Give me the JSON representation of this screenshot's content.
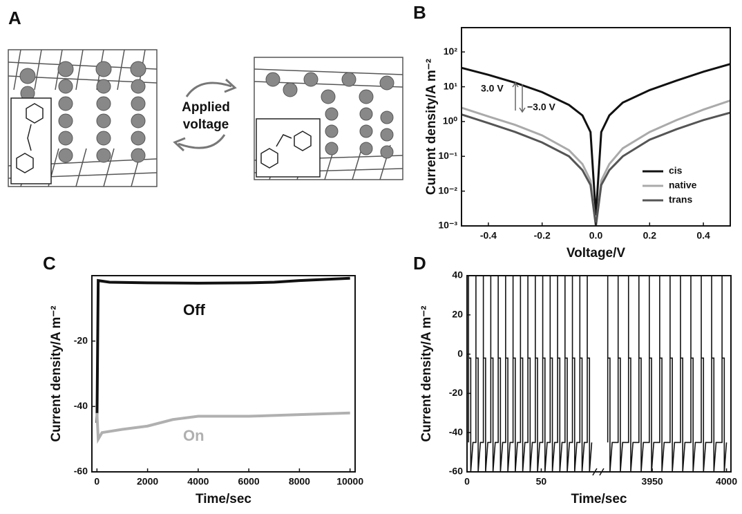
{
  "diagram": {
    "label": "A",
    "lines": [
      "Applied",
      "voltage"
    ]
  },
  "chart_data": [
    {
      "type": "line",
      "label": "B",
      "xlabel": "Voltage/V",
      "ylabel": "Current density/A m⁻²",
      "log_y": true,
      "legend": "lower right",
      "xlim": [
        -0.5,
        0.5
      ],
      "xticks": [
        -0.4,
        -0.2,
        {
          "value": 0,
          "label": "0.0"
        },
        0.2,
        0.4
      ],
      "ylim": [
        0.001,
        500
      ],
      "yticks": [
        {
          "value": 0.001,
          "label": "10⁻³"
        },
        {
          "value": 0.01,
          "label": "10⁻²"
        },
        {
          "value": 0.1,
          "label": "10⁻¹"
        },
        {
          "value": 1,
          "label": "10⁰"
        },
        {
          "value": 10,
          "label": "10¹"
        },
        {
          "value": 100,
          "label": "10²"
        }
      ],
      "annotations": [
        "3.0 V",
        "−3.0 V"
      ],
      "x": [
        -0.5,
        -0.4,
        -0.3,
        -0.2,
        -0.1,
        -0.05,
        -0.02,
        0,
        0.02,
        0.05,
        0.1,
        0.2,
        0.3,
        0.4,
        0.5
      ],
      "series": [
        {
          "name": "cis",
          "color": "#111111",
          "values": [
            35,
            22,
            13,
            7,
            3,
            1.5,
            0.5,
            0.002,
            0.5,
            1.5,
            3.5,
            8,
            15,
            27,
            45
          ]
        },
        {
          "name": "native",
          "color": "#aaaaaa",
          "values": [
            2.5,
            1.4,
            0.8,
            0.4,
            0.15,
            0.06,
            0.02,
            0.001,
            0.02,
            0.06,
            0.17,
            0.5,
            1.1,
            2.2,
            4
          ]
        },
        {
          "name": "trans",
          "color": "#555555",
          "values": [
            1.6,
            0.9,
            0.5,
            0.25,
            0.1,
            0.04,
            0.015,
            0.001,
            0.015,
            0.04,
            0.1,
            0.3,
            0.6,
            1.1,
            1.8
          ]
        }
      ]
    },
    {
      "type": "line",
      "label": "C",
      "xlabel": "Time/sec",
      "ylabel": "Current density/A m⁻²",
      "xlim": [
        -200,
        10200
      ],
      "xticks": [
        0,
        2000,
        4000,
        6000,
        8000,
        10000
      ],
      "ylim": [
        -60,
        0
      ],
      "yticks": [
        -60,
        -40,
        -20
      ],
      "series": [
        {
          "name": "Off",
          "color": "#111111",
          "x": [
            0,
            50,
            500,
            2000,
            4000,
            6000,
            7000,
            8000,
            10000
          ],
          "values": [
            -45,
            -1.5,
            -2,
            -2.2,
            -2.3,
            -2.2,
            -2,
            -1.5,
            -0.8
          ]
        },
        {
          "name": "On",
          "color": "#b0b0b0",
          "x": [
            0,
            50,
            200,
            1000,
            2000,
            3000,
            4000,
            6000,
            8000,
            10000
          ],
          "values": [
            -42,
            -50,
            -48,
            -47,
            -46,
            -44,
            -43,
            -43,
            -42.5,
            -42
          ]
        }
      ]
    },
    {
      "type": "line",
      "label": "D",
      "xlabel": "Time/sec",
      "ylabel": "Current density/A m⁻²",
      "xlim": [
        0,
        4003
      ],
      "axis_break": [
        87,
        3915
      ],
      "xticks": [
        0,
        50,
        3950,
        4000
      ],
      "ylim": [
        -60,
        40
      ],
      "yticks": [
        -60,
        -40,
        -20,
        0,
        20,
        40
      ],
      "series": [
        {
          "color": "#111111",
          "x": [
            1,
            1,
            1,
            2.5,
            2.5,
            4,
            6,
            6,
            6,
            7.5,
            7.5,
            9,
            11,
            11,
            11,
            12.5,
            12.5,
            14,
            16,
            16,
            16,
            17.5,
            17.5,
            19,
            21,
            21,
            21,
            22.5,
            22.5,
            24,
            26,
            26,
            26,
            27.5,
            27.5,
            29,
            31,
            31,
            31,
            32.5,
            32.5,
            34,
            36,
            36,
            36,
            37.5,
            37.5,
            39,
            41,
            41,
            41,
            42.5,
            42.5,
            44,
            46,
            46,
            46,
            47.5,
            47.5,
            49,
            51,
            51,
            51,
            52.5,
            52.5,
            54,
            56,
            56,
            56,
            57.5,
            57.5,
            59,
            61,
            61,
            61,
            62.5,
            62.5,
            64,
            66,
            66,
            66,
            67.5,
            67.5,
            69,
            71,
            71,
            71,
            72.5,
            72.5,
            74,
            76,
            76,
            76,
            77.5,
            77.5,
            79,
            81,
            81,
            81,
            82.5,
            82.5,
            84
          ],
          "values": [
            -45,
            40,
            -2,
            -2,
            -60,
            -45,
            -45,
            40,
            -2,
            -2,
            -60,
            -45,
            -45,
            40,
            -2,
            -2,
            -60,
            -45,
            -45,
            40,
            -2,
            -2,
            -60,
            -45,
            -45,
            40,
            -2,
            -2,
            -60,
            -45,
            -45,
            40,
            -2,
            -2,
            -60,
            -45,
            -45,
            40,
            -2,
            -2,
            -60,
            -45,
            -45,
            40,
            -2,
            -2,
            -60,
            -45,
            -45,
            40,
            -2,
            -2,
            -60,
            -45,
            -45,
            40,
            -2,
            -2,
            -60,
            -45,
            -45,
            40,
            -2,
            -2,
            -60,
            -45,
            -45,
            40,
            -2,
            -2,
            -60,
            -45,
            -45,
            40,
            -2,
            -2,
            -60,
            -45,
            -45,
            40,
            -2,
            -2,
            -60,
            -45,
            -45,
            40,
            -2,
            -2,
            -60,
            -45,
            -45,
            40,
            -2,
            -2,
            -60,
            -45,
            -45,
            40,
            -2,
            -2,
            -60,
            -45
          ]
        },
        {
          "color": "#111111",
          "x": [
            3920,
            3920,
            3920,
            3921.5,
            3921.5,
            3923,
            3927,
            3927,
            3927,
            3928.5,
            3928.5,
            3930,
            3934,
            3934,
            3934,
            3935.5,
            3935.5,
            3937,
            3941,
            3941,
            3941,
            3942.5,
            3942.5,
            3944,
            3948,
            3948,
            3948,
            3949.5,
            3949.5,
            3951,
            3955,
            3955,
            3955,
            3956.5,
            3956.5,
            3958,
            3962,
            3962,
            3962,
            3963.5,
            3963.5,
            3965,
            3969,
            3969,
            3969,
            3970.5,
            3970.5,
            3972,
            3976,
            3976,
            3976,
            3977.5,
            3977.5,
            3979,
            3983,
            3983,
            3983,
            3984.5,
            3984.5,
            3986,
            3990,
            3990,
            3990,
            3991.5,
            3991.5,
            3993,
            3997,
            3997,
            3997,
            3998.5,
            3998.5,
            4000
          ],
          "values": [
            -45,
            40,
            -2,
            -2,
            -60,
            -45,
            -45,
            40,
            -2,
            -2,
            -60,
            -45,
            -45,
            40,
            -2,
            -2,
            -60,
            -45,
            -45,
            40,
            -2,
            -2,
            -60,
            -45,
            -45,
            40,
            -2,
            -2,
            -60,
            -45,
            -45,
            40,
            -2,
            -2,
            -60,
            -45,
            -45,
            40,
            -2,
            -2,
            -60,
            -45,
            -45,
            40,
            -2,
            -2,
            -60,
            -45,
            -45,
            40,
            -2,
            -2,
            -60,
            -45,
            -45,
            40,
            -2,
            -2,
            -60,
            -45,
            -45,
            40,
            -2,
            -2,
            -60,
            -45,
            -45,
            40,
            -2,
            -2,
            -60,
            -45
          ]
        }
      ]
    }
  ]
}
